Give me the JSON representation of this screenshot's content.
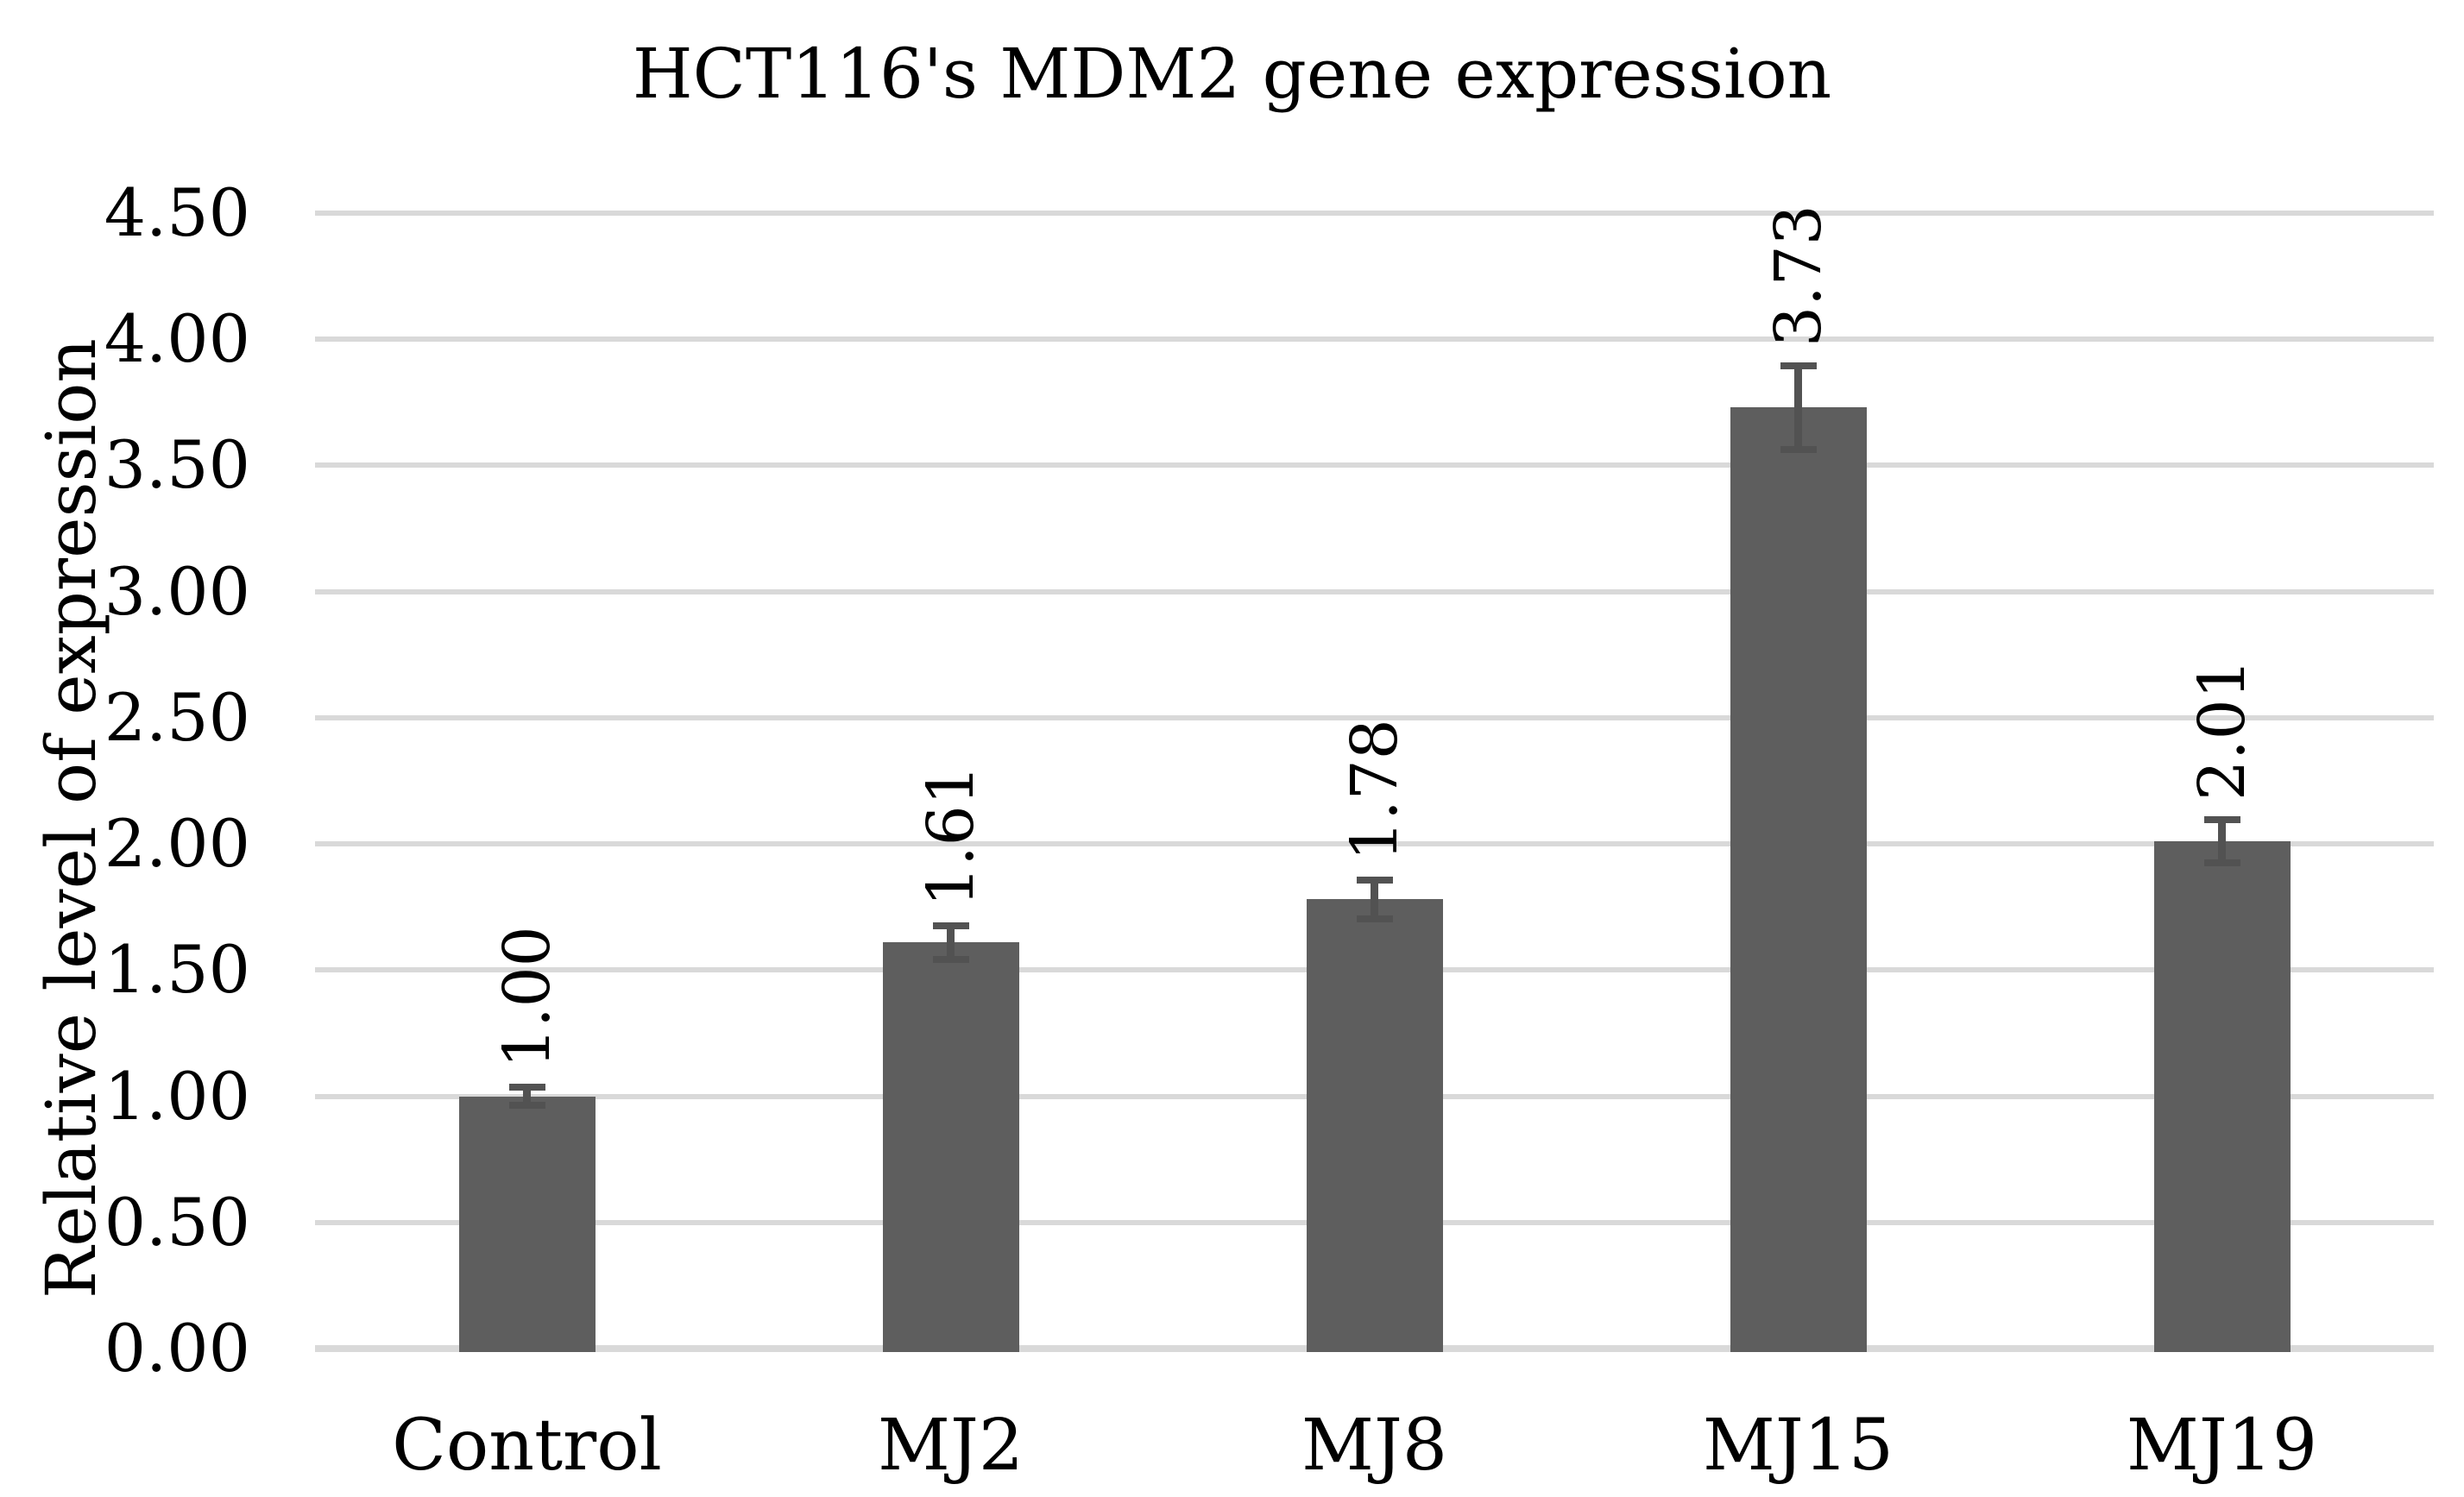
{
  "chart_data": {
    "type": "bar",
    "title": "HCT116's MDM2 gene expression",
    "ylabel": "Relative level of expression",
    "xlabel": "",
    "categories": [
      "Control",
      "MJ2",
      "MJ8",
      "MJ15",
      "MJ19"
    ],
    "values": [
      1.0,
      1.61,
      1.78,
      3.73,
      2.01
    ],
    "data_labels": [
      "1.00",
      "1.61",
      "1.78",
      "3.73",
      "2.01"
    ],
    "error_bars": [
      0.05,
      0.08,
      0.09,
      0.18,
      0.1
    ],
    "ylim": [
      0.0,
      4.5
    ],
    "ytick_step": 0.5,
    "ytick_labels": [
      "0.00",
      "0.50",
      "1.00",
      "1.50",
      "2.00",
      "2.50",
      "3.00",
      "3.50",
      "4.00",
      "4.50"
    ],
    "grid": true,
    "legend": false,
    "colors": {
      "bar": "#5e5e5e",
      "error_bar": "#525252",
      "gridline": "#d9d9d9",
      "text": "#000000",
      "background": "#ffffff"
    }
  }
}
